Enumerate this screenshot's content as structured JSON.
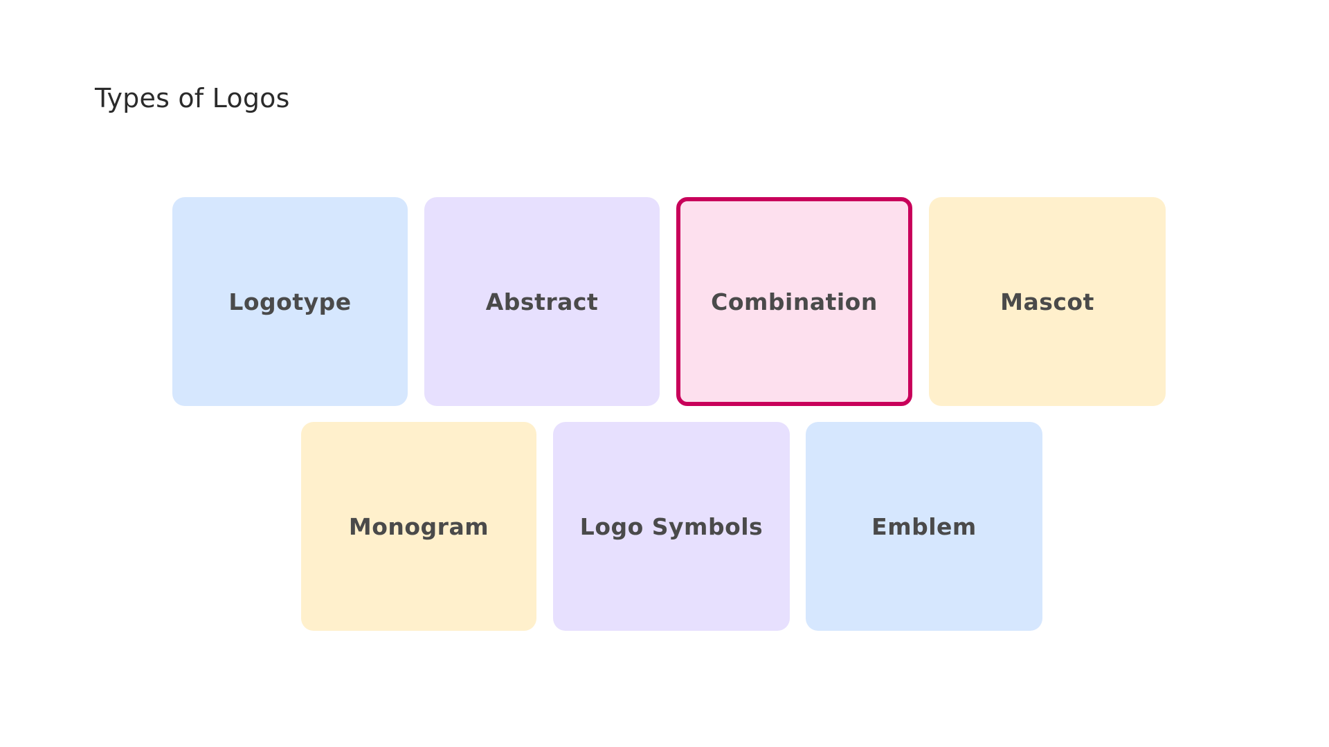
{
  "page": {
    "title": "Types of Logos"
  },
  "cards": [
    {
      "label": "Logotype",
      "color": "#d6e7fe",
      "selected": false
    },
    {
      "label": "Abstract",
      "color": "#e7e0fe",
      "selected": false
    },
    {
      "label": "Combination",
      "color": "#fde0ee",
      "selected": true,
      "border_color": "#c8005a"
    },
    {
      "label": "Mascot",
      "color": "#fff0cc",
      "selected": false
    },
    {
      "label": "Monogram",
      "color": "#fff0cc",
      "selected": false
    },
    {
      "label": "Logo Symbols",
      "color": "#e7e0fe",
      "selected": false
    },
    {
      "label": "Emblem",
      "color": "#d6e7fe",
      "selected": false
    }
  ]
}
